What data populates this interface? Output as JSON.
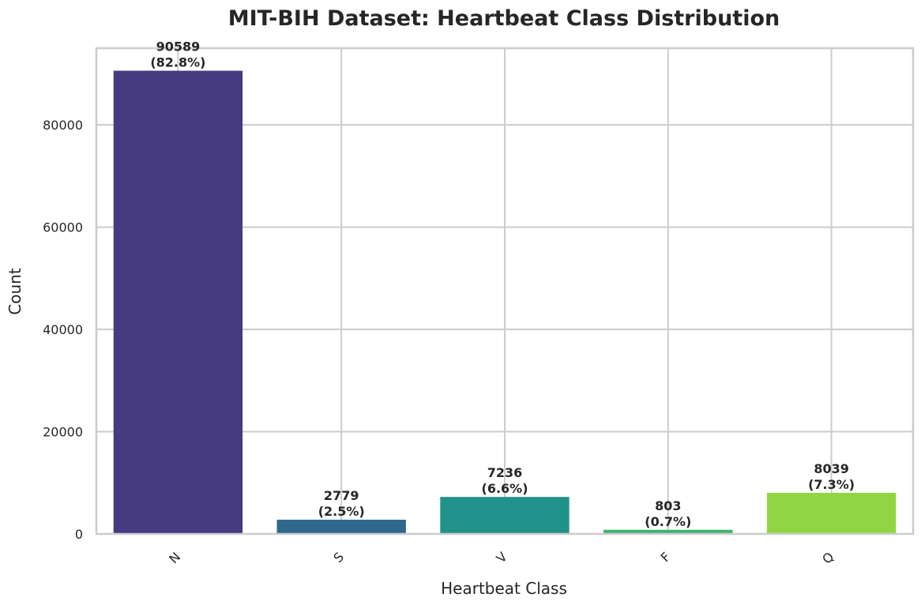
{
  "chart_data": {
    "type": "bar",
    "title": "MIT-BIH Dataset: Heartbeat Class Distribution",
    "xlabel": "Heartbeat Class",
    "ylabel": "Count",
    "categories": [
      "N",
      "S",
      "V",
      "F",
      "Q"
    ],
    "values": [
      90589,
      2779,
      7236,
      803,
      8039
    ],
    "data_labels": [
      [
        "90589",
        "(82.8%)"
      ],
      [
        "2779",
        "(2.5%)"
      ],
      [
        "7236",
        "(6.6%)"
      ],
      [
        "803",
        "(0.7%)"
      ],
      [
        "8039",
        "(7.3%)"
      ]
    ],
    "colors": [
      "#463a80",
      "#30678d",
      "#21928a",
      "#3eb46e",
      "#91d543"
    ],
    "ylim": [
      0,
      95000
    ],
    "yticks": [
      0,
      20000,
      40000,
      60000,
      80000
    ],
    "ytick_labels": [
      "0",
      "20000",
      "40000",
      "60000",
      "80000"
    ],
    "grid": true,
    "xtick_rotation": 45
  }
}
